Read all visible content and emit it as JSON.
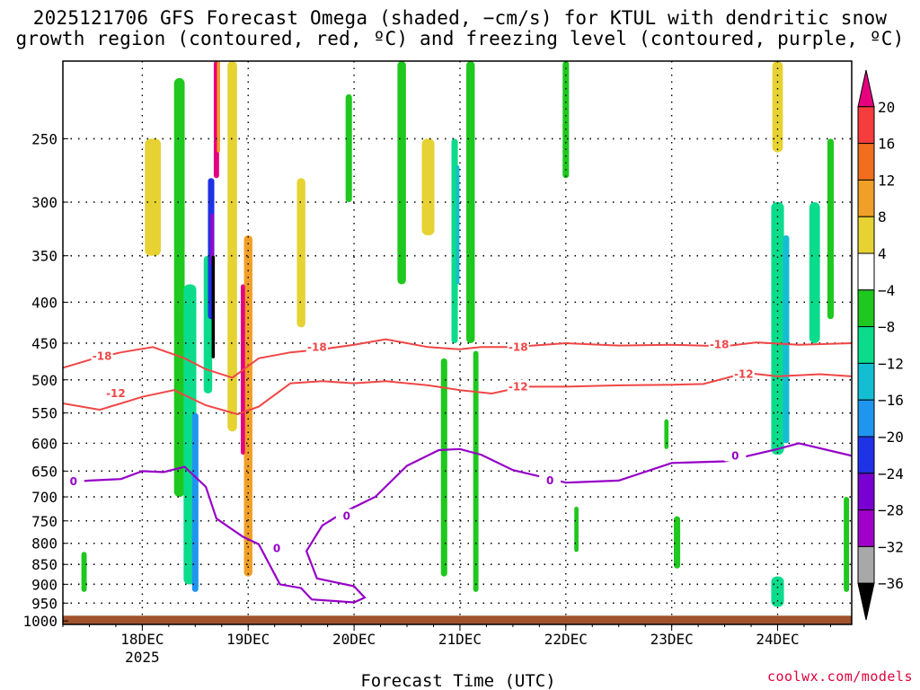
{
  "chart_data": {
    "type": "heatmap",
    "title_line1": "2025121706 GFS Forecast Omega (shaded, −cm/s) for KTUL with dendritic snow",
    "title_line2": "growth region (contoured, red, ºC) and freezing level (contoured, purple, ºC)",
    "xlabel": "Forecast Time (UTC)",
    "x_ticks": [
      {
        "label": "18DEC",
        "sublabel": "2025",
        "day": 1
      },
      {
        "label": "19DEC",
        "day": 2
      },
      {
        "label": "20DEC",
        "day": 3
      },
      {
        "label": "21DEC",
        "day": 4
      },
      {
        "label": "22DEC",
        "day": 5
      },
      {
        "label": "23DEC",
        "day": 6
      },
      {
        "label": "24DEC",
        "day": 7
      }
    ],
    "x_range_days": [
      0.25,
      7.7
    ],
    "y_ticks": [
      250,
      300,
      350,
      400,
      450,
      500,
      550,
      600,
      650,
      700,
      750,
      800,
      850,
      900,
      950,
      1000
    ],
    "y_range_hpa": [
      200,
      1010
    ],
    "colorbar": {
      "labels": [
        "20",
        "16",
        "12",
        "8",
        "4",
        "−4",
        "−8",
        "−12",
        "−16",
        "−20",
        "−24",
        "−28",
        "−32",
        "−36"
      ],
      "colors": [
        "#e6007e",
        "#f63c3c",
        "#f06e1e",
        "#f0a028",
        "#e6d232",
        "#ffffff",
        "#1ec81e",
        "#0adc8c",
        "#14bed2",
        "#1e96f0",
        "#1e32e6",
        "#7800d2",
        "#a000c8",
        "#a8a8a8",
        "#000000"
      ]
    },
    "contours": {
      "red_labels": [
        "-18",
        "-12"
      ],
      "purple_labels": [
        "0"
      ],
      "minus18": [
        [
          0.25,
          483
        ],
        [
          0.55,
          470
        ],
        [
          0.8,
          462
        ],
        [
          1.1,
          455
        ],
        [
          1.4,
          470
        ],
        [
          1.6,
          485
        ],
        [
          1.85,
          497
        ],
        [
          2.1,
          470
        ],
        [
          2.4,
          462
        ],
        [
          2.7,
          458
        ],
        [
          3.0,
          452
        ],
        [
          3.3,
          445
        ],
        [
          3.7,
          455
        ],
        [
          4.0,
          458
        ],
        [
          4.2,
          455
        ],
        [
          4.5,
          455
        ],
        [
          5.0,
          450
        ],
        [
          5.5,
          453
        ],
        [
          6.0,
          452
        ],
        [
          6.5,
          454
        ],
        [
          6.8,
          449
        ],
        [
          7.2,
          452
        ],
        [
          7.7,
          450
        ]
      ],
      "minus12": [
        [
          0.25,
          535
        ],
        [
          0.6,
          545
        ],
        [
          1.0,
          525
        ],
        [
          1.3,
          515
        ],
        [
          1.6,
          538
        ],
        [
          1.9,
          552
        ],
        [
          2.1,
          540
        ],
        [
          2.4,
          505
        ],
        [
          2.7,
          502
        ],
        [
          3.0,
          505
        ],
        [
          3.3,
          502
        ],
        [
          3.7,
          508
        ],
        [
          4.0,
          515
        ],
        [
          4.3,
          520
        ],
        [
          4.6,
          510
        ],
        [
          5.0,
          510
        ],
        [
          5.5,
          508
        ],
        [
          6.0,
          507
        ],
        [
          6.3,
          506
        ],
        [
          6.7,
          490
        ],
        [
          7.0,
          495
        ],
        [
          7.4,
          492
        ],
        [
          7.7,
          495
        ]
      ],
      "freezing": [
        [
          0.25,
          672
        ],
        [
          0.5,
          668
        ],
        [
          0.8,
          665
        ],
        [
          1.0,
          650
        ],
        [
          1.2,
          652
        ],
        [
          1.4,
          642
        ],
        [
          1.6,
          680
        ],
        [
          1.7,
          745
        ],
        [
          1.95,
          785
        ],
        [
          2.1,
          802
        ],
        [
          2.3,
          900
        ],
        [
          2.5,
          910
        ],
        [
          2.6,
          940
        ],
        [
          3.0,
          948
        ],
        [
          3.1,
          935
        ],
        [
          3.0,
          905
        ],
        [
          2.65,
          885
        ],
        [
          2.55,
          818
        ],
        [
          2.7,
          760
        ],
        [
          2.9,
          732
        ],
        [
          3.2,
          700
        ],
        [
          3.5,
          640
        ],
        [
          3.8,
          612
        ],
        [
          4.0,
          610
        ],
        [
          4.2,
          620
        ],
        [
          4.5,
          648
        ],
        [
          5.0,
          672
        ],
        [
          5.5,
          668
        ],
        [
          6.0,
          635
        ],
        [
          6.5,
          632
        ],
        [
          7.0,
          610
        ],
        [
          7.2,
          600
        ],
        [
          7.7,
          622
        ]
      ]
    },
    "omega_cells": [
      {
        "day": 0.55,
        "p0": 320,
        "p1": 470,
        "w": 0.25,
        "level": "4"
      },
      {
        "day": 0.35,
        "p0": 400,
        "p1": 560,
        "w": 0.15,
        "level": "4"
      },
      {
        "day": 1.1,
        "p0": 250,
        "p1": 350,
        "w": 0.15,
        "level": "8"
      },
      {
        "day": 1.35,
        "p0": 210,
        "p1": 700,
        "w": 0.1,
        "level": "-8"
      },
      {
        "day": 1.45,
        "p0": 380,
        "p1": 900,
        "w": 0.12,
        "level": "-12"
      },
      {
        "day": 1.5,
        "p0": 550,
        "p1": 920,
        "w": 0.06,
        "level": "-20"
      },
      {
        "day": 1.62,
        "p0": 350,
        "p1": 520,
        "w": 0.08,
        "level": "-12"
      },
      {
        "day": 1.65,
        "p0": 280,
        "p1": 420,
        "w": 0.06,
        "level": "-24"
      },
      {
        "day": 1.66,
        "p0": 310,
        "p1": 360,
        "w": 0.03,
        "level": "-32"
      },
      {
        "day": 1.67,
        "p0": 350,
        "p1": 470,
        "w": 0.03,
        "level": "-36"
      },
      {
        "day": 1.7,
        "p0": 200,
        "p1": 280,
        "w": 0.05,
        "level": "20"
      },
      {
        "day": 1.72,
        "p0": 200,
        "p1": 260,
        "w": 0.03,
        "level": "12"
      },
      {
        "day": 1.85,
        "p0": 200,
        "p1": 580,
        "w": 0.09,
        "level": "8"
      },
      {
        "day": 2.0,
        "p0": 330,
        "p1": 880,
        "w": 0.08,
        "level": "12"
      },
      {
        "day": 1.95,
        "p0": 380,
        "p1": 620,
        "w": 0.04,
        "level": "20"
      },
      {
        "day": 2.25,
        "p0": 330,
        "p1": 750,
        "w": 0.12,
        "level": "4"
      },
      {
        "day": 2.45,
        "p0": 520,
        "p1": 950,
        "w": 0.12,
        "level": "4"
      },
      {
        "day": 2.5,
        "p0": 280,
        "p1": 430,
        "w": 0.08,
        "level": "8"
      },
      {
        "day": 2.95,
        "p0": 220,
        "p1": 300,
        "w": 0.06,
        "level": "-8"
      },
      {
        "day": 3.05,
        "p0": 220,
        "p1": 420,
        "w": 0.06,
        "level": "4"
      },
      {
        "day": 3.45,
        "p0": 200,
        "p1": 380,
        "w": 0.08,
        "level": "-8"
      },
      {
        "day": 3.7,
        "p0": 250,
        "p1": 330,
        "w": 0.12,
        "level": "8"
      },
      {
        "day": 3.8,
        "p0": 200,
        "p1": 500,
        "w": 0.08,
        "level": "4"
      },
      {
        "day": 3.95,
        "p0": 250,
        "p1": 450,
        "w": 0.06,
        "level": "-12"
      },
      {
        "day": 3.98,
        "p0": 270,
        "p1": 380,
        "w": 0.03,
        "level": "-16"
      },
      {
        "day": 4.1,
        "p0": 200,
        "p1": 450,
        "w": 0.08,
        "level": "-8"
      },
      {
        "day": 4.25,
        "p0": 230,
        "p1": 450,
        "w": 0.08,
        "level": "4"
      },
      {
        "day": 3.85,
        "p0": 470,
        "p1": 880,
        "w": 0.06,
        "level": "-8"
      },
      {
        "day": 4.15,
        "p0": 460,
        "p1": 920,
        "w": 0.05,
        "level": "-8"
      },
      {
        "day": 4.8,
        "p0": 240,
        "p1": 380,
        "w": 0.12,
        "level": "4"
      },
      {
        "day": 5.0,
        "p0": 200,
        "p1": 280,
        "w": 0.06,
        "level": "-8"
      },
      {
        "day": 6.2,
        "p0": 260,
        "p1": 320,
        "w": 0.06,
        "level": "4"
      },
      {
        "day": 6.75,
        "p0": 200,
        "p1": 260,
        "w": 0.06,
        "level": "4"
      },
      {
        "day": 6.95,
        "p0": 280,
        "p1": 400,
        "w": 0.06,
        "level": "4"
      },
      {
        "day": 7.0,
        "p0": 300,
        "p1": 620,
        "w": 0.12,
        "level": "-12"
      },
      {
        "day": 7.08,
        "p0": 330,
        "p1": 600,
        "w": 0.06,
        "level": "-16"
      },
      {
        "day": 7.0,
        "p0": 200,
        "p1": 260,
        "w": 0.1,
        "level": "8"
      },
      {
        "day": 6.72,
        "p0": 650,
        "p1": 850,
        "w": 0.08,
        "level": "4"
      },
      {
        "day": 7.0,
        "p0": 880,
        "p1": 960,
        "w": 0.12,
        "level": "-12"
      },
      {
        "day": 7.35,
        "p0": 300,
        "p1": 450,
        "w": 0.1,
        "level": "-12"
      },
      {
        "day": 7.5,
        "p0": 250,
        "p1": 420,
        "w": 0.06,
        "level": "-8"
      },
      {
        "day": 7.62,
        "p0": 380,
        "p1": 620,
        "w": 0.06,
        "level": "4"
      },
      {
        "day": 7.65,
        "p0": 700,
        "p1": 920,
        "w": 0.05,
        "level": "-8"
      },
      {
        "day": 6.05,
        "p0": 740,
        "p1": 860,
        "w": 0.06,
        "level": "-8"
      },
      {
        "day": 5.1,
        "p0": 720,
        "p1": 820,
        "w": 0.04,
        "level": "-8"
      },
      {
        "day": 5.95,
        "p0": 560,
        "p1": 610,
        "w": 0.04,
        "level": "-8"
      },
      {
        "day": 0.45,
        "p0": 820,
        "p1": 920,
        "w": 0.05,
        "level": "-8"
      }
    ]
  },
  "footer": {
    "credit": "coolwx.com/models"
  }
}
